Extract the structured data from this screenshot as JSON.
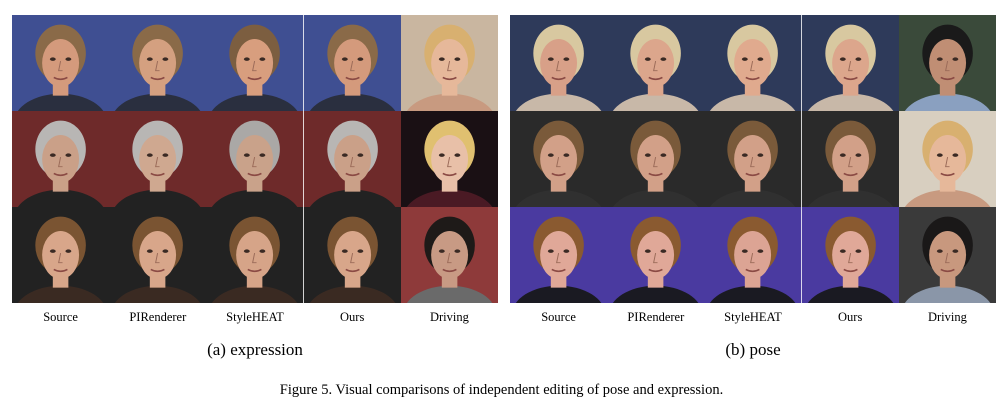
{
  "figure": {
    "caption": "Figure 5. Visual comparisons of independent editing of pose and expression."
  },
  "panels": [
    {
      "id": "expression",
      "subcaption": "(a) expression",
      "column_labels": [
        "Source",
        "PIRenderer",
        "StyleHEAT",
        "Ours",
        "Driving"
      ],
      "rows": [
        {
          "bg": [
            "#3f4f92",
            "#3f4f92",
            "#3f4f92",
            "#3f4f92",
            "#c9b6a0"
          ],
          "skin": [
            "#d49a7c",
            "#d4a080",
            "#d89e7e",
            "#d49a7c",
            "#e6b89a"
          ],
          "hair": [
            "#8a6a48",
            "#8a6a48",
            "#7c5e40",
            "#8a6a48",
            "#d8b070"
          ],
          "shirt": [
            "#2a2f3f",
            "#2a2f3f",
            "#2a2f3f",
            "#2a2f3f",
            "#c89a80"
          ]
        },
        {
          "bg": [
            "#6e2a2a",
            "#6e2a2a",
            "#6e2a2a",
            "#6e2a2a",
            "#1a1014"
          ],
          "skin": [
            "#caa088",
            "#cfa890",
            "#c9a28a",
            "#caa088",
            "#e8c0a8"
          ],
          "hair": [
            "#b8b6b4",
            "#b8b6b4",
            "#aaa8a6",
            "#b8b6b4",
            "#e0c070"
          ],
          "shirt": [
            "#222222",
            "#222222",
            "#222222",
            "#222222",
            "#4a1a24"
          ]
        },
        {
          "bg": [
            "#222222",
            "#222222",
            "#222222",
            "#222222",
            "#8e3a3a"
          ],
          "skin": [
            "#d8a68a",
            "#d8a68a",
            "#d6a488",
            "#d8a68a",
            "#c89a84"
          ],
          "hair": [
            "#7a5432",
            "#7a5432",
            "#7a5432",
            "#7a5432",
            "#1e1a18"
          ],
          "shirt": [
            "#3a2a22",
            "#3a2a22",
            "#3a2a22",
            "#3a2a22",
            "#6a6a6a"
          ]
        }
      ]
    },
    {
      "id": "pose",
      "subcaption": "(b) pose",
      "column_labels": [
        "Source",
        "PIRenderer",
        "StyleHEAT",
        "Ours",
        "Driving"
      ],
      "rows": [
        {
          "bg": [
            "#2e3a5a",
            "#2e3a5a",
            "#2e3a5a",
            "#2e3a5a",
            "#3a4a3a"
          ],
          "skin": [
            "#d8a088",
            "#dca68c",
            "#e0aa8e",
            "#dca68c",
            "#c08e74"
          ],
          "hair": [
            "#d8c8a0",
            "#d8c8a0",
            "#d8c8a0",
            "#d8c8a0",
            "#1a1a1a"
          ],
          "shirt": [
            "#c8b8a8",
            "#c8b8a8",
            "#c8b8a8",
            "#c8b8a8",
            "#8aa0c0"
          ]
        },
        {
          "bg": [
            "#2a2a2a",
            "#2a2a2a",
            "#2a2a2a",
            "#2a2a2a",
            "#d8cfc0"
          ],
          "skin": [
            "#d2a088",
            "#d2a088",
            "#d2a088",
            "#d2a088",
            "#e6b89a"
          ],
          "hair": [
            "#7a5a3a",
            "#7a5a3a",
            "#7a5a3a",
            "#7a5a3a",
            "#d8b070"
          ],
          "shirt": [
            "#303030",
            "#303030",
            "#303030",
            "#303030",
            "#c89a80"
          ]
        },
        {
          "bg": [
            "#4a3aa0",
            "#4a3aa0",
            "#4a3aa0",
            "#4a3aa0",
            "#3a3a3a"
          ],
          "skin": [
            "#e0a898",
            "#e0a898",
            "#dca494",
            "#e0a898",
            "#c8987e"
          ],
          "hair": [
            "#8a5a30",
            "#8a5a30",
            "#8a5a30",
            "#8a5a30",
            "#1a1818"
          ],
          "shirt": [
            "#1a1a22",
            "#1a1a22",
            "#1a1a22",
            "#1a1a22",
            "#8a96a8"
          ]
        }
      ]
    }
  ]
}
